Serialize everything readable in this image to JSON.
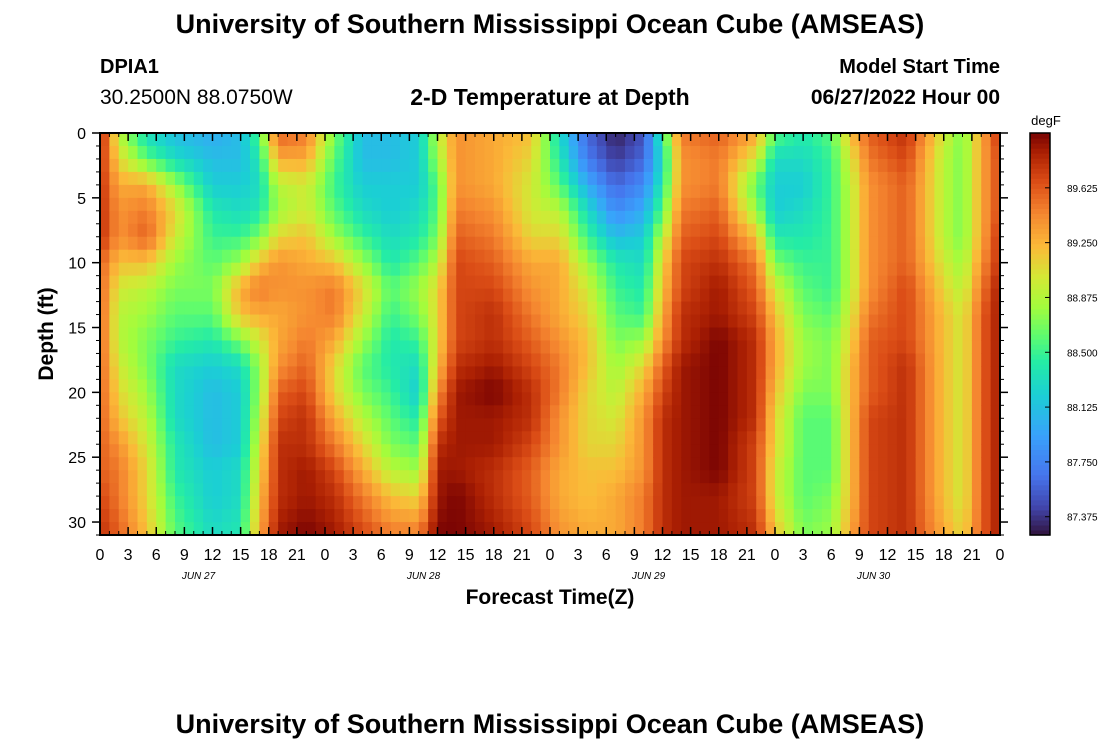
{
  "header": {
    "title": "University of Southern Mississippi Ocean Cube (AMSEAS)",
    "station": "DPIA1",
    "coords": "30.2500N  88.0750W",
    "plot_title": "2-D Temperature at Depth",
    "model_start_label": "Model Start Time",
    "model_start_value": "06/27/2022 Hour 00"
  },
  "footer": {
    "title": "University of Southern Mississippi Ocean Cube (AMSEAS)"
  },
  "chart_data": {
    "type": "heatmap",
    "title": "2-D Temperature at Depth",
    "xlabel": "Forecast Time(Z)",
    "ylabel": "Depth (ft)",
    "units": "degF",
    "x_hours": [
      0,
      96
    ],
    "y_depth_ft": [
      0,
      31
    ],
    "x_tick_labels": [
      "0",
      "3",
      "6",
      "9",
      "12",
      "15",
      "18",
      "21",
      "0",
      "3",
      "6",
      "9",
      "12",
      "15",
      "18",
      "21",
      "0",
      "3",
      "6",
      "9",
      "12",
      "15",
      "18",
      "21",
      "0",
      "3",
      "6",
      "9",
      "12",
      "15",
      "18",
      "21",
      "0"
    ],
    "y_ticks": [
      0,
      5,
      10,
      15,
      20,
      25,
      30
    ],
    "day_labels": [
      {
        "label": "JUN 27",
        "hour": 12
      },
      {
        "label": "JUN 28",
        "hour": 36
      },
      {
        "label": "JUN 29",
        "hour": 60
      },
      {
        "label": "JUN 30",
        "hour": 84
      }
    ],
    "colorbar": {
      "min": 87.25,
      "max": 90.0,
      "ticks": [
        87.375,
        87.75,
        88.125,
        88.5,
        88.875,
        89.25,
        89.625
      ],
      "tick_labels": [
        "87.375",
        "87.750",
        "88.125",
        "88.500",
        "88.875",
        "89.250",
        "89.625"
      ]
    },
    "depth_profile_ft": [
      0,
      2,
      4,
      6,
      8,
      10,
      12,
      14,
      16,
      18,
      20,
      22,
      24,
      26,
      28,
      31
    ],
    "profiles_hourly": {
      "0": [
        89.9,
        89.8,
        89.8,
        89.8,
        89.8,
        89.6,
        89.6,
        89.6,
        89.6,
        89.6,
        89.6,
        89.6,
        89.6,
        89.6,
        89.7,
        89.8
      ],
      "2": [
        88.9,
        89.1,
        89.3,
        89.4,
        89.4,
        89.2,
        89.0,
        88.9,
        88.9,
        89.0,
        89.1,
        89.2,
        89.4,
        89.5,
        89.5,
        89.6
      ],
      "5": [
        88.3,
        88.6,
        89.3,
        89.5,
        89.6,
        89.2,
        88.9,
        88.8,
        88.7,
        88.7,
        88.8,
        88.9,
        89.0,
        89.1,
        89.1,
        89.2
      ],
      "8": [
        88.1,
        88.3,
        88.8,
        89.1,
        89.0,
        88.8,
        88.7,
        88.6,
        88.5,
        88.3,
        88.3,
        88.3,
        88.4,
        88.4,
        88.5,
        88.6
      ],
      "12": [
        88.0,
        88.1,
        88.2,
        88.4,
        88.5,
        88.6,
        88.7,
        88.6,
        88.4,
        88.2,
        88.1,
        88.1,
        88.1,
        88.2,
        88.2,
        88.3
      ],
      "15": [
        88.1,
        88.1,
        88.2,
        88.3,
        88.5,
        88.8,
        89.3,
        89.2,
        88.7,
        88.3,
        88.2,
        88.2,
        88.2,
        88.3,
        88.3,
        88.4
      ],
      "17": [
        88.6,
        88.4,
        88.3,
        88.4,
        88.7,
        89.2,
        89.5,
        89.3,
        89.0,
        88.8,
        88.8,
        88.9,
        89.0,
        89.1,
        89.2,
        89.3
      ],
      "19": [
        89.6,
        89.3,
        88.9,
        88.8,
        89.1,
        89.4,
        89.4,
        89.3,
        89.3,
        89.4,
        89.6,
        89.7,
        89.8,
        89.8,
        89.8,
        89.9
      ],
      "22": [
        89.5,
        89.3,
        89.0,
        89.0,
        89.2,
        89.3,
        89.4,
        89.4,
        89.5,
        89.6,
        89.7,
        89.8,
        89.8,
        89.9,
        89.9,
        90.0
      ],
      "25": [
        88.7,
        88.6,
        88.5,
        88.6,
        88.8,
        89.2,
        89.5,
        89.5,
        89.3,
        89.1,
        89.1,
        89.3,
        89.5,
        89.7,
        89.8,
        89.9
      ],
      "28": [
        88.1,
        88.1,
        88.2,
        88.3,
        88.5,
        88.8,
        89.1,
        89.0,
        88.8,
        88.6,
        88.7,
        88.9,
        89.1,
        89.3,
        89.5,
        89.7
      ],
      "31": [
        88.1,
        88.1,
        88.2,
        88.2,
        88.3,
        88.4,
        88.6,
        88.5,
        88.4,
        88.4,
        88.5,
        88.6,
        88.7,
        88.9,
        89.2,
        89.5
      ],
      "34": [
        88.2,
        88.2,
        88.2,
        88.3,
        88.4,
        88.6,
        88.8,
        88.7,
        88.5,
        88.3,
        88.2,
        88.4,
        88.6,
        88.8,
        89.1,
        89.5
      ],
      "36": [
        88.9,
        88.8,
        88.6,
        88.6,
        88.7,
        88.9,
        89.1,
        89.1,
        89.1,
        89.2,
        89.4,
        89.6,
        89.8,
        89.9,
        89.9,
        90.0
      ],
      "38": [
        89.4,
        89.4,
        89.4,
        89.5,
        89.6,
        89.7,
        89.7,
        89.7,
        89.7,
        89.8,
        89.9,
        89.9,
        89.9,
        89.9,
        90.0,
        90.0
      ],
      "42": [
        89.3,
        89.3,
        89.3,
        89.4,
        89.5,
        89.6,
        89.7,
        89.8,
        89.8,
        89.9,
        90.0,
        89.9,
        89.9,
        89.8,
        89.8,
        89.9
      ],
      "46": [
        89.2,
        89.1,
        89.0,
        89.0,
        89.1,
        89.3,
        89.4,
        89.5,
        89.6,
        89.7,
        89.8,
        89.8,
        89.7,
        89.6,
        89.6,
        89.7
      ],
      "49": [
        88.3,
        88.4,
        88.6,
        88.9,
        89.1,
        89.3,
        89.3,
        89.3,
        89.4,
        89.5,
        89.5,
        89.4,
        89.4,
        89.3,
        89.3,
        89.4
      ],
      "52": [
        87.6,
        87.7,
        88.0,
        88.3,
        88.5,
        88.8,
        89.0,
        89.1,
        89.2,
        89.2,
        89.1,
        89.1,
        89.1,
        89.2,
        89.2,
        89.3
      ],
      "55": [
        87.3,
        87.4,
        87.6,
        87.8,
        88.1,
        88.4,
        88.5,
        88.6,
        88.7,
        88.8,
        88.9,
        89.0,
        89.1,
        89.2,
        89.3,
        89.3
      ],
      "58": [
        87.5,
        87.6,
        87.8,
        88.0,
        88.2,
        88.3,
        88.4,
        88.5,
        88.8,
        89.1,
        89.3,
        89.4,
        89.4,
        89.4,
        89.5,
        89.5
      ],
      "60": [
        88.5,
        88.3,
        88.4,
        88.6,
        88.9,
        89.1,
        89.2,
        89.3,
        89.4,
        89.6,
        89.7,
        89.8,
        89.8,
        89.8,
        89.8,
        89.8
      ],
      "62": [
        89.5,
        89.4,
        89.4,
        89.5,
        89.6,
        89.7,
        89.7,
        89.8,
        89.8,
        89.9,
        89.9,
        89.9,
        89.9,
        89.9,
        89.9,
        89.9
      ],
      "66": [
        89.6,
        89.5,
        89.5,
        89.6,
        89.7,
        89.8,
        89.9,
        89.9,
        90.0,
        90.0,
        90.0,
        90.0,
        90.0,
        90.0,
        89.9,
        89.9
      ],
      "70": [
        89.3,
        89.0,
        88.6,
        88.8,
        89.2,
        89.5,
        89.6,
        89.7,
        89.8,
        89.8,
        89.8,
        89.8,
        89.7,
        89.7,
        89.7,
        89.8
      ],
      "72": [
        88.6,
        88.3,
        88.2,
        88.2,
        88.4,
        88.7,
        89.0,
        89.2,
        89.3,
        89.3,
        89.2,
        89.1,
        89.1,
        89.0,
        89.0,
        89.2
      ],
      "75": [
        88.4,
        88.3,
        88.2,
        88.3,
        88.4,
        88.5,
        88.6,
        88.7,
        88.8,
        88.8,
        88.7,
        88.6,
        88.6,
        88.6,
        88.6,
        88.7
      ],
      "78": [
        88.6,
        88.5,
        88.5,
        88.5,
        88.5,
        88.5,
        88.5,
        88.6,
        88.7,
        88.7,
        88.7,
        88.6,
        88.6,
        88.6,
        88.7,
        88.8
      ],
      "80": [
        89.2,
        89.0,
        88.9,
        88.9,
        88.9,
        88.9,
        88.9,
        89.0,
        89.1,
        89.2,
        89.2,
        89.2,
        89.2,
        89.2,
        89.2,
        89.3
      ],
      "82": [
        89.6,
        89.5,
        89.4,
        89.4,
        89.4,
        89.4,
        89.4,
        89.5,
        89.6,
        89.6,
        89.6,
        89.7,
        89.7,
        89.7,
        89.7,
        89.7
      ],
      "86": [
        89.8,
        89.7,
        89.6,
        89.6,
        89.6,
        89.6,
        89.7,
        89.7,
        89.7,
        89.8,
        89.8,
        89.8,
        89.8,
        89.8,
        89.8,
        89.8
      ],
      "90": [
        89.0,
        88.9,
        88.9,
        88.9,
        88.9,
        89.0,
        89.1,
        89.2,
        89.2,
        89.2,
        89.2,
        89.2,
        89.2,
        89.2,
        89.2,
        89.3
      ],
      "92": [
        88.7,
        88.7,
        88.7,
        88.7,
        88.7,
        88.8,
        88.9,
        89.0,
        89.0,
        89.0,
        89.0,
        89.0,
        89.0,
        89.0,
        89.0,
        89.1
      ],
      "94": [
        89.3,
        89.3,
        89.3,
        89.3,
        89.3,
        89.4,
        89.5,
        89.6,
        89.6,
        89.6,
        89.6,
        89.6,
        89.6,
        89.6,
        89.6,
        89.6
      ],
      "96": [
        89.8,
        89.7,
        89.7,
        89.7,
        89.8,
        89.8,
        89.9,
        89.9,
        89.9,
        89.9,
        89.9,
        89.9,
        89.9,
        89.9,
        89.9,
        89.9
      ]
    }
  }
}
